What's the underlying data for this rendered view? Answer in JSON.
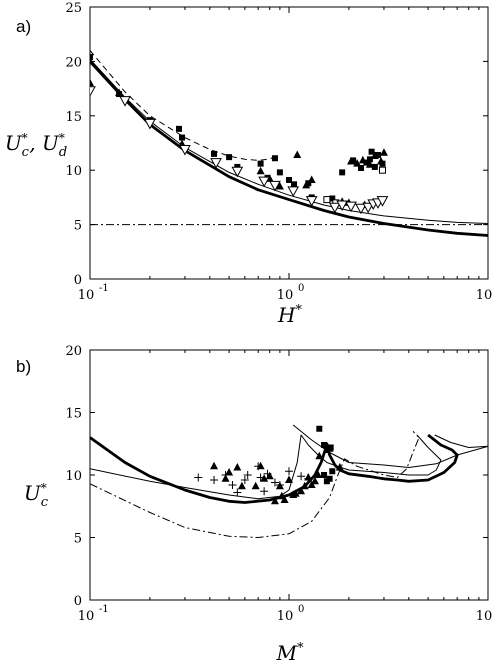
{
  "chart_data": [
    {
      "type": "scatter",
      "panel_label": "a)",
      "xlabel": "H*",
      "ylabel": "Uc*, Ud*",
      "xscale": "log",
      "xlim": [
        0.1,
        10
      ],
      "ylim": [
        0,
        25
      ],
      "x_ticks": [
        0.1,
        1,
        10
      ],
      "x_tick_labels": [
        [
          "10",
          "-1"
        ],
        [
          "10",
          "0"
        ],
        [
          "10",
          "1"
        ]
      ],
      "y_ticks": [
        0,
        5,
        10,
        15,
        20,
        25
      ],
      "y_tick_labels": [
        "0",
        "5",
        "10",
        "15",
        "20",
        "25"
      ],
      "grid": false,
      "series": [
        {
          "style": "thick-solid",
          "points": [
            [
              0.1,
              20.0
            ],
            [
              0.15,
              16.5
            ],
            [
              0.2,
              14.2
            ],
            [
              0.3,
              11.8
            ],
            [
              0.5,
              9.4
            ],
            [
              0.7,
              8.2
            ],
            [
              1.0,
              7.3
            ],
            [
              1.5,
              6.3
            ],
            [
              2.0,
              5.7
            ],
            [
              3.0,
              5.1
            ],
            [
              5.0,
              4.5
            ],
            [
              7.0,
              4.2
            ],
            [
              10.0,
              4.0
            ]
          ]
        },
        {
          "style": "thin-solid",
          "points": [
            [
              0.1,
              20.2
            ],
            [
              0.15,
              16.7
            ],
            [
              0.2,
              14.5
            ],
            [
              0.3,
              12.1
            ],
            [
              0.5,
              9.8
            ],
            [
              0.7,
              8.7
            ],
            [
              1.0,
              7.7
            ],
            [
              1.5,
              6.8
            ],
            [
              2.0,
              6.3
            ],
            [
              3.0,
              5.8
            ],
            [
              5.0,
              5.4
            ],
            [
              7.0,
              5.2
            ],
            [
              10.0,
              5.1
            ]
          ]
        },
        {
          "style": "dashed",
          "points": [
            [
              0.1,
              21.0
            ],
            [
              0.15,
              17.2
            ],
            [
              0.2,
              15.0
            ],
            [
              0.3,
              13.0
            ],
            [
              0.4,
              11.9
            ],
            [
              0.5,
              11.3
            ],
            [
              0.6,
              11.0
            ],
            [
              0.7,
              10.9
            ],
            [
              0.78,
              11.0
            ],
            [
              0.85,
              11.2
            ],
            [
              0.9,
              11.4
            ]
          ]
        },
        {
          "style": "dash-dot",
          "points": [
            [
              0.1,
              5.0
            ],
            [
              10.0,
              5.0
            ]
          ]
        }
      ],
      "markers": {
        "filled_square": [
          [
            0.1,
            20.4
          ],
          [
            0.14,
            17.0
          ],
          [
            0.2,
            14.6
          ],
          [
            0.28,
            13.8
          ],
          [
            0.29,
            13.0
          ],
          [
            0.42,
            11.5
          ],
          [
            0.5,
            11.2
          ],
          [
            0.55,
            10.3
          ],
          [
            0.72,
            10.6
          ],
          [
            0.78,
            9.3
          ],
          [
            0.85,
            11.1
          ],
          [
            0.9,
            9.8
          ],
          [
            1.0,
            9.1
          ],
          [
            1.06,
            8.7
          ],
          [
            1.25,
            8.8
          ],
          [
            1.3,
            7.5
          ],
          [
            1.65,
            7.4
          ],
          [
            1.85,
            9.8
          ],
          [
            2.1,
            10.9
          ],
          [
            2.3,
            10.2
          ],
          [
            2.45,
            10.7
          ],
          [
            2.55,
            11.0
          ],
          [
            2.6,
            11.7
          ],
          [
            2.7,
            10.3
          ],
          [
            2.8,
            11.4
          ],
          [
            2.95,
            10.6
          ]
        ],
        "filled_triangle": [
          [
            0.1,
            18.0
          ],
          [
            0.14,
            17.1
          ],
          [
            0.29,
            12.4
          ],
          [
            0.72,
            9.9
          ],
          [
            0.8,
            9.2
          ],
          [
            0.9,
            8.5
          ],
          [
            1.1,
            11.4
          ],
          [
            1.22,
            8.6
          ],
          [
            1.3,
            9.1
          ],
          [
            2.05,
            10.8
          ],
          [
            2.2,
            10.6
          ],
          [
            2.35,
            10.9
          ],
          [
            2.55,
            10.5
          ],
          [
            2.7,
            11.3
          ],
          [
            2.9,
            10.8
          ],
          [
            3.0,
            11.6
          ],
          [
            1.85,
            7.1
          ],
          [
            2.0,
            7.0
          ],
          [
            2.4,
            6.8
          ]
        ],
        "open_triangle_down": [
          [
            0.1,
            17.3
          ],
          [
            0.15,
            16.4
          ],
          [
            0.2,
            14.3
          ],
          [
            0.3,
            11.9
          ],
          [
            0.43,
            10.7
          ],
          [
            0.55,
            9.9
          ],
          [
            0.75,
            9.0
          ],
          [
            0.85,
            8.6
          ],
          [
            1.05,
            8.1
          ],
          [
            1.3,
            7.2
          ],
          [
            1.7,
            6.6
          ],
          [
            1.85,
            6.8
          ],
          [
            2.05,
            6.7
          ],
          [
            2.3,
            6.5
          ],
          [
            2.5,
            6.6
          ],
          [
            2.65,
            6.9
          ],
          [
            2.8,
            7.0
          ],
          [
            2.95,
            7.2
          ]
        ],
        "open_square": [
          [
            1.55,
            7.3
          ],
          [
            1.72,
            7.0
          ],
          [
            2.95,
            10.0
          ]
        ]
      }
    },
    {
      "type": "scatter",
      "panel_label": "b)",
      "xlabel": "M*",
      "ylabel": "Uc*",
      "xscale": "log",
      "xlim": [
        0.1,
        10
      ],
      "ylim": [
        0,
        20
      ],
      "x_ticks": [
        0.1,
        1,
        10
      ],
      "x_tick_labels": [
        [
          "10",
          "-1"
        ],
        [
          "10",
          "0"
        ],
        [
          "10",
          "1"
        ]
      ],
      "y_ticks": [
        0,
        5,
        10,
        15,
        20
      ],
      "y_tick_labels": [
        "0",
        "5",
        "10",
        "15",
        "20"
      ],
      "grid": false,
      "series": [
        {
          "style": "thick-solid",
          "points": [
            [
              0.1,
              13.0
            ],
            [
              0.15,
              11.0
            ],
            [
              0.2,
              9.9
            ],
            [
              0.3,
              8.8
            ],
            [
              0.4,
              8.2
            ],
            [
              0.5,
              7.9
            ],
            [
              0.6,
              7.8
            ],
            [
              0.8,
              8.0
            ],
            [
              1.0,
              8.4
            ],
            [
              1.2,
              9.1
            ],
            [
              1.35,
              10.0
            ],
            [
              1.45,
              11.0
            ],
            [
              1.52,
              12.0
            ],
            [
              1.55,
              12.5
            ],
            [
              1.6,
              11.6
            ],
            [
              1.7,
              10.8
            ],
            [
              1.8,
              10.4
            ],
            [
              2.0,
              10.1
            ],
            [
              2.5,
              9.9
            ],
            [
              3.0,
              9.7
            ],
            [
              3.5,
              9.6
            ],
            [
              4.0,
              9.5
            ],
            [
              5.0,
              9.6
            ],
            [
              6.0,
              10.2
            ],
            [
              6.8,
              11.0
            ],
            [
              7.0,
              11.6
            ],
            [
              6.6,
              12.0
            ],
            [
              5.8,
              12.4
            ],
            [
              5.0,
              13.2
            ]
          ]
        },
        {
          "style": "thin-solid",
          "points": [
            [
              0.1,
              10.5
            ],
            [
              0.2,
              9.5
            ],
            [
              0.3,
              9.0
            ],
            [
              0.5,
              8.4
            ],
            [
              0.7,
              8.1
            ],
            [
              0.9,
              8.3
            ],
            [
              1.0,
              8.8
            ],
            [
              1.1,
              11.0
            ],
            [
              1.15,
              13.2
            ],
            [
              1.25,
              12.4
            ],
            [
              1.4,
              11.6
            ],
            [
              1.55,
              11.0
            ],
            [
              1.75,
              10.7
            ],
            [
              2.0,
              10.4
            ],
            [
              3.0,
              10.2
            ],
            [
              4.0,
              10.0
            ],
            [
              5.0,
              10.0
            ],
            [
              5.5,
              10.4
            ],
            [
              5.8,
              11.2
            ],
            [
              5.0,
              12.2
            ],
            [
              4.4,
              13.2
            ]
          ]
        },
        {
          "style": "thin-solid",
          "points": [
            [
              1.05,
              14.0
            ],
            [
              1.3,
              12.8
            ],
            [
              1.6,
              11.8
            ],
            [
              2.0,
              11.0
            ],
            [
              3.0,
              10.8
            ],
            [
              4.0,
              10.6
            ],
            [
              5.5,
              10.9
            ],
            [
              7.0,
              11.6
            ],
            [
              10.0,
              12.3
            ],
            [
              8.0,
              12.2
            ],
            [
              6.5,
              12.6
            ],
            [
              5.4,
              13.2
            ]
          ]
        },
        {
          "style": "dash-dot",
          "points": [
            [
              0.1,
              9.3
            ],
            [
              0.2,
              7.0
            ],
            [
              0.3,
              5.8
            ],
            [
              0.5,
              5.1
            ],
            [
              0.7,
              5.0
            ],
            [
              1.0,
              5.3
            ],
            [
              1.3,
              6.3
            ],
            [
              1.6,
              8.2
            ],
            [
              1.75,
              9.9
            ],
            [
              1.9,
              11.3
            ],
            [
              2.2,
              10.7
            ],
            [
              3.0,
              10.0
            ],
            [
              3.5,
              9.8
            ],
            [
              3.9,
              10.5
            ],
            [
              4.2,
              11.8
            ],
            [
              4.5,
              13.0
            ],
            [
              4.2,
              13.5
            ]
          ]
        }
      ],
      "markers": {
        "filled_triangle": [
          [
            0.42,
            10.7
          ],
          [
            0.5,
            10.2
          ],
          [
            0.55,
            10.6
          ],
          [
            0.72,
            10.7
          ],
          [
            0.48,
            9.7
          ],
          [
            0.58,
            9.1
          ],
          [
            0.68,
            9.1
          ],
          [
            0.75,
            9.7
          ],
          [
            0.8,
            9.9
          ],
          [
            0.9,
            9.1
          ],
          [
            0.92,
            8.3
          ],
          [
            1.0,
            9.6
          ],
          [
            1.08,
            8.5
          ],
          [
            1.15,
            8.7
          ],
          [
            1.2,
            9.1
          ],
          [
            1.3,
            9.2
          ],
          [
            1.35,
            9.5
          ],
          [
            1.42,
            11.5
          ],
          [
            1.6,
            12.1
          ],
          [
            0.85,
            7.9
          ],
          [
            0.95,
            8.0
          ],
          [
            1.05,
            8.4
          ],
          [
            1.25,
            9.8
          ],
          [
            1.8,
            10.6
          ],
          [
            1.4,
            10.0
          ]
        ],
        "filled_square": [
          [
            1.42,
            13.7
          ],
          [
            1.5,
            12.4
          ],
          [
            1.55,
            12.0
          ],
          [
            1.62,
            12.2
          ],
          [
            1.5,
            10.0
          ],
          [
            1.6,
            9.7
          ],
          [
            1.65,
            10.3
          ],
          [
            1.55,
            9.5
          ]
        ],
        "plus": [
          [
            0.35,
            9.8
          ],
          [
            0.42,
            9.6
          ],
          [
            0.48,
            10.0
          ],
          [
            0.52,
            9.2
          ],
          [
            0.55,
            8.6
          ],
          [
            0.6,
            9.6
          ],
          [
            0.62,
            10.0
          ],
          [
            0.7,
            10.7
          ],
          [
            0.72,
            9.8
          ],
          [
            0.75,
            8.7
          ],
          [
            0.78,
            10.1
          ],
          [
            0.85,
            9.4
          ],
          [
            0.9,
            9.2
          ],
          [
            1.0,
            10.3
          ],
          [
            1.15,
            9.9
          ],
          [
            1.25,
            9.7
          ]
        ]
      }
    }
  ]
}
